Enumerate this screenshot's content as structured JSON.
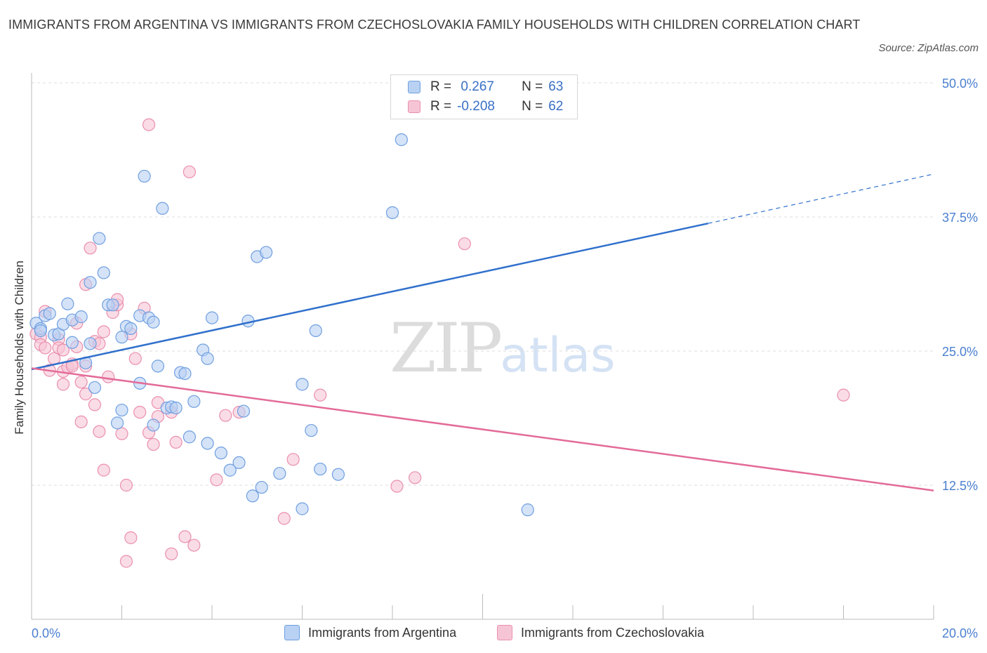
{
  "header": {
    "title": "IMMIGRANTS FROM ARGENTINA VS IMMIGRANTS FROM CZECHOSLOVAKIA FAMILY HOUSEHOLDS WITH CHILDREN CORRELATION CHART",
    "source": "Source: ZipAtlas.com"
  },
  "watermark": {
    "zip": "ZIP",
    "atlas": "atlas"
  },
  "legend": {
    "rows": [
      {
        "r_label": "R =",
        "r_value": " 0.267",
        "n_label": "N =",
        "n_value": "63"
      },
      {
        "r_label": "R =",
        "r_value": "-0.208",
        "n_label": "N =",
        "n_value": "62"
      }
    ]
  },
  "bottom_legend": {
    "series1": "Immigrants from Argentina",
    "series2": "Immigrants from Czechoslovakia"
  },
  "colors": {
    "blue_fill": "#b9d1f3",
    "blue_stroke": "#6f9fe0",
    "blue_line": "#3070cc",
    "pink_fill": "#f6c5d5",
    "pink_stroke": "#ea8fae",
    "pink_line": "#e36b98",
    "tick_label": "#4a7fd0",
    "grid": "#dedede",
    "axis": "#bbbbbb"
  },
  "chart_data": {
    "type": "scatter",
    "title": "IMMIGRANTS FROM ARGENTINA VS IMMIGRANTS FROM CZECHOSLOVAKIA FAMILY HOUSEHOLDS WITH CHILDREN CORRELATION CHART",
    "xlabel": "",
    "ylabel": "Family Households with Children",
    "xlim": [
      0,
      20
    ],
    "ylim": [
      0,
      50
    ],
    "x_tick_labels": [
      "0.0%",
      "20.0%"
    ],
    "y_ticks": [
      12.5,
      25.0,
      37.5,
      50.0
    ],
    "y_tick_labels": [
      "12.5%",
      "25.0%",
      "37.5%",
      "50.0%"
    ],
    "grid": true,
    "legend_position": "top-center",
    "series": [
      {
        "name": "Immigrants from Argentina",
        "R": 0.267,
        "N": 63,
        "trend": {
          "x": [
            0,
            15.0
          ],
          "y": [
            23.3,
            36.9
          ],
          "extended_to": [
            20.0,
            41.5
          ]
        },
        "points": [
          [
            0.1,
            27.6
          ],
          [
            0.2,
            27.1
          ],
          [
            0.2,
            26.9
          ],
          [
            0.3,
            28.3
          ],
          [
            0.4,
            28.5
          ],
          [
            0.5,
            26.5
          ],
          [
            0.6,
            26.6
          ],
          [
            0.7,
            27.5
          ],
          [
            0.8,
            29.4
          ],
          [
            0.9,
            27.9
          ],
          [
            0.9,
            25.8
          ],
          [
            1.1,
            28.2
          ],
          [
            1.2,
            23.9
          ],
          [
            1.3,
            25.7
          ],
          [
            1.3,
            31.4
          ],
          [
            1.4,
            21.6
          ],
          [
            1.5,
            35.5
          ],
          [
            1.6,
            32.3
          ],
          [
            1.7,
            29.3
          ],
          [
            1.8,
            29.3
          ],
          [
            1.9,
            18.3
          ],
          [
            2.0,
            19.5
          ],
          [
            2.0,
            26.3
          ],
          [
            2.1,
            27.3
          ],
          [
            2.2,
            27.1
          ],
          [
            2.4,
            22.0
          ],
          [
            2.4,
            28.3
          ],
          [
            2.5,
            41.3
          ],
          [
            2.6,
            28.1
          ],
          [
            2.7,
            27.7
          ],
          [
            2.7,
            18.1
          ],
          [
            2.8,
            23.6
          ],
          [
            2.9,
            38.3
          ],
          [
            3.0,
            19.7
          ],
          [
            3.1,
            19.8
          ],
          [
            3.2,
            19.7
          ],
          [
            3.3,
            23.0
          ],
          [
            3.4,
            22.9
          ],
          [
            3.5,
            17.0
          ],
          [
            3.6,
            20.3
          ],
          [
            3.8,
            25.1
          ],
          [
            3.9,
            24.3
          ],
          [
            3.9,
            16.4
          ],
          [
            4.0,
            28.1
          ],
          [
            4.2,
            15.5
          ],
          [
            4.4,
            13.9
          ],
          [
            4.6,
            14.6
          ],
          [
            4.7,
            19.4
          ],
          [
            4.8,
            27.8
          ],
          [
            4.9,
            11.5
          ],
          [
            5.0,
            33.8
          ],
          [
            5.1,
            12.3
          ],
          [
            5.2,
            34.2
          ],
          [
            5.5,
            13.6
          ],
          [
            6.0,
            21.9
          ],
          [
            6.0,
            10.3
          ],
          [
            6.2,
            17.6
          ],
          [
            6.3,
            26.9
          ],
          [
            6.4,
            14.0
          ],
          [
            6.8,
            13.5
          ],
          [
            8.0,
            37.9
          ],
          [
            8.2,
            44.7
          ],
          [
            11.0,
            10.2
          ]
        ]
      },
      {
        "name": "Immigrants from Czechoslovakia",
        "R": -0.208,
        "N": 62,
        "trend": {
          "x": [
            0,
            20.0
          ],
          "y": [
            23.4,
            12.0
          ]
        },
        "points": [
          [
            0.1,
            26.6
          ],
          [
            0.2,
            26.3
          ],
          [
            0.2,
            25.6
          ],
          [
            0.3,
            28.7
          ],
          [
            0.3,
            25.3
          ],
          [
            0.4,
            23.2
          ],
          [
            0.5,
            24.3
          ],
          [
            0.6,
            26.1
          ],
          [
            0.6,
            25.3
          ],
          [
            0.7,
            23.1
          ],
          [
            0.7,
            25.1
          ],
          [
            0.7,
            21.9
          ],
          [
            0.8,
            23.5
          ],
          [
            0.9,
            23.8
          ],
          [
            0.9,
            23.6
          ],
          [
            1.0,
            27.6
          ],
          [
            1.0,
            25.4
          ],
          [
            1.1,
            22.1
          ],
          [
            1.1,
            18.4
          ],
          [
            1.2,
            21.0
          ],
          [
            1.2,
            31.2
          ],
          [
            1.2,
            23.6
          ],
          [
            1.3,
            34.6
          ],
          [
            1.4,
            25.9
          ],
          [
            1.4,
            20.0
          ],
          [
            1.5,
            25.7
          ],
          [
            1.5,
            17.5
          ],
          [
            1.6,
            26.8
          ],
          [
            1.6,
            13.9
          ],
          [
            1.7,
            22.6
          ],
          [
            1.8,
            28.6
          ],
          [
            1.9,
            29.3
          ],
          [
            1.9,
            29.8
          ],
          [
            2.0,
            17.3
          ],
          [
            2.1,
            12.5
          ],
          [
            2.2,
            7.6
          ],
          [
            2.2,
            26.6
          ],
          [
            2.3,
            24.3
          ],
          [
            2.4,
            19.3
          ],
          [
            2.5,
            29.0
          ],
          [
            2.6,
            17.4
          ],
          [
            2.6,
            46.1
          ],
          [
            2.7,
            16.3
          ],
          [
            2.8,
            18.9
          ],
          [
            2.8,
            20.2
          ],
          [
            3.1,
            19.3
          ],
          [
            3.2,
            16.5
          ],
          [
            3.4,
            7.7
          ],
          [
            3.5,
            41.7
          ],
          [
            3.6,
            6.9
          ],
          [
            4.1,
            13.0
          ],
          [
            4.3,
            19.0
          ],
          [
            4.6,
            19.3
          ],
          [
            5.6,
            9.4
          ],
          [
            5.8,
            14.9
          ],
          [
            6.4,
            20.9
          ],
          [
            8.1,
            12.4
          ],
          [
            8.5,
            13.2
          ],
          [
            9.6,
            35.0
          ],
          [
            18.0,
            20.9
          ],
          [
            2.1,
            5.4
          ],
          [
            3.1,
            6.1
          ]
        ]
      }
    ]
  }
}
